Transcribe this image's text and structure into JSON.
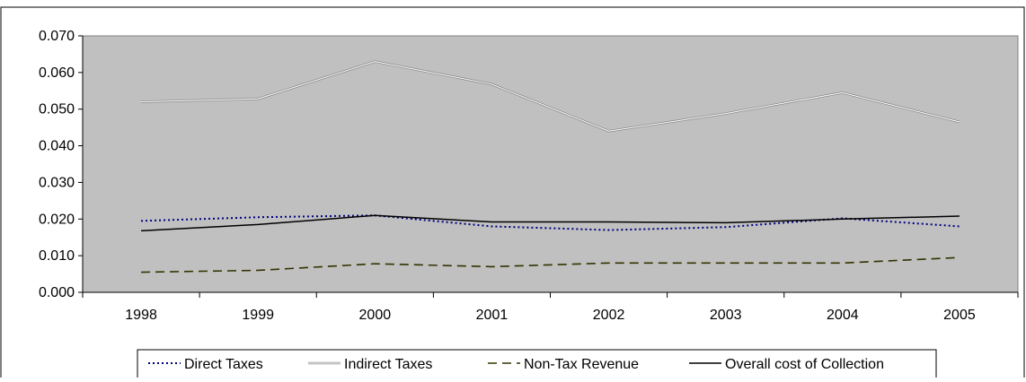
{
  "chart_data": {
    "type": "line",
    "title": "",
    "xlabel": "",
    "ylabel": "",
    "categories": [
      "1998",
      "1999",
      "2000",
      "2001",
      "2002",
      "2003",
      "2004",
      "2005"
    ],
    "ylim": [
      0,
      0.07
    ],
    "y_ticks": [
      "0.000",
      "0.010",
      "0.020",
      "0.030",
      "0.040",
      "0.050",
      "0.060",
      "0.070"
    ],
    "grid": false,
    "plot_background": "#c0c0c0",
    "legend_position": "bottom",
    "series": [
      {
        "name": "Direct Taxes",
        "values": [
          0.0195,
          0.0205,
          0.021,
          0.018,
          0.017,
          0.0178,
          0.0202,
          0.018
        ],
        "color": "#000080",
        "style": "dotted"
      },
      {
        "name": "Indirect Taxes",
        "values": [
          0.052,
          0.0528,
          0.063,
          0.0568,
          0.044,
          0.0488,
          0.0545,
          0.0465
        ],
        "color": "#ffffff",
        "style": "light-double"
      },
      {
        "name": "Non-Tax Revenue",
        "values": [
          0.0055,
          0.006,
          0.0078,
          0.007,
          0.008,
          0.008,
          0.008,
          0.0095
        ],
        "color": "#333300",
        "style": "dashed"
      },
      {
        "name": "Overall cost of Collection",
        "values": [
          0.0168,
          0.0185,
          0.021,
          0.0192,
          0.0192,
          0.019,
          0.02,
          0.0208
        ],
        "color": "#000000",
        "style": "solid"
      }
    ]
  }
}
